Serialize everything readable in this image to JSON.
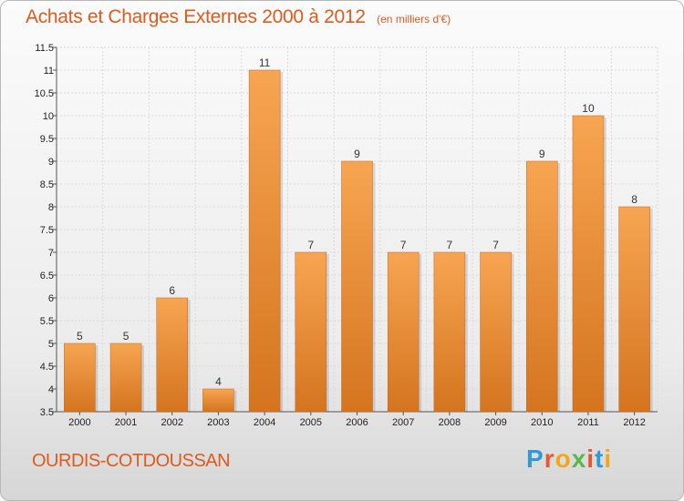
{
  "header": {
    "title": "Achats et Charges Externes 2000 à 2012",
    "subtitle": "(en milliers d'€)"
  },
  "footer": {
    "commune": "OURDIS-COTDOUSSAN",
    "brand": "Proxiti"
  },
  "colors": {
    "accent": "#e05a1c",
    "bar_light": "#f7a552",
    "bar_dark": "#d4741f",
    "brand_letters": [
      "#2e9bd6",
      "#e8562a",
      "#f3a61d",
      "#5ab948",
      "#e8562a",
      "#2e9bd6",
      "#f3a61d"
    ]
  },
  "chart_data": {
    "type": "bar",
    "title": "Achats et Charges Externes 2000 à 2012",
    "subtitle": "(en milliers d'€)",
    "xlabel": "",
    "ylabel": "",
    "categories": [
      "2000",
      "2001",
      "2002",
      "2003",
      "2004",
      "2005",
      "2006",
      "2007",
      "2008",
      "2009",
      "2010",
      "2011",
      "2012"
    ],
    "values": [
      5,
      5,
      6,
      4,
      11,
      7,
      9,
      7,
      7,
      7,
      9,
      10,
      8
    ],
    "data_labels": [
      "5",
      "5",
      "6",
      "4",
      "11",
      "7",
      "9",
      "7",
      "7",
      "7",
      "9",
      "10",
      "8"
    ],
    "ylim": [
      3.5,
      11.5
    ],
    "yticks": [
      3.5,
      4,
      4.5,
      5,
      5.5,
      6,
      6.5,
      7,
      7.5,
      8,
      8.5,
      9,
      9.5,
      10,
      10.5,
      11,
      11.5
    ],
    "ytick_labels": [
      "3.5",
      "4",
      "4.5",
      "5",
      "5.5",
      "6",
      "6.5",
      "7",
      "7.5",
      "8",
      "8.5",
      "9",
      "9.5",
      "10",
      "10.5",
      "11",
      "11.5"
    ],
    "grid": true,
    "legend": "none"
  }
}
